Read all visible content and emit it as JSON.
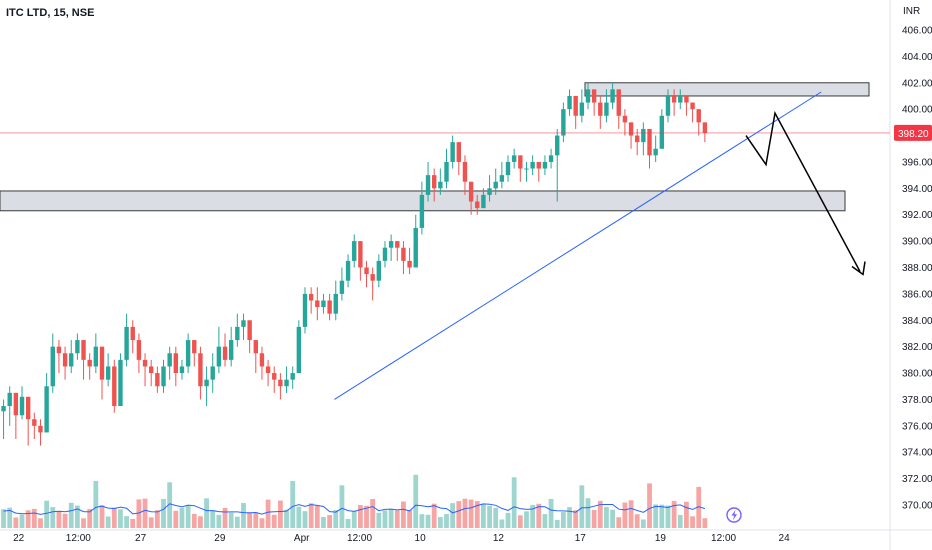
{
  "symbol": {
    "title": "ITC LTD, 15, NSE"
  },
  "chart_data": {
    "type": "candlestick",
    "currency": "INR",
    "last_price": "398.20",
    "y_ticks": [
      "406.00",
      "404.00",
      "402.00",
      "400.00",
      "398.00",
      "396.00",
      "394.00",
      "392.00",
      "390.00",
      "388.00",
      "386.00",
      "384.00",
      "382.00",
      "380.00",
      "378.00",
      "376.00",
      "374.00",
      "372.00",
      "370.00"
    ],
    "y_range": [
      369,
      407
    ],
    "x_ticks": [
      "22",
      "12:00",
      "27",
      "29",
      "Apr",
      "12:00",
      "10",
      "12",
      "17",
      "19",
      "12:00",
      "24"
    ],
    "price_path": [
      [
        377.5,
        375.0,
        378.0
      ],
      [
        378.5,
        376.0,
        379.0
      ],
      [
        376.8,
        375.0,
        378.5
      ],
      [
        378.2,
        376.5,
        379.0
      ],
      [
        376.5,
        374.5,
        378.0
      ],
      [
        376.0,
        375.0,
        377.0
      ],
      [
        375.5,
        374.5,
        376.5
      ],
      [
        379.0,
        375.5,
        380.0
      ],
      [
        382.0,
        378.5,
        383.0
      ],
      [
        381.5,
        380.0,
        382.5
      ],
      [
        380.5,
        379.5,
        382.0
      ],
      [
        381.5,
        380.0,
        382.5
      ],
      [
        382.5,
        381.0,
        383.0
      ],
      [
        381.0,
        379.5,
        382.0
      ],
      [
        380.5,
        379.5,
        381.5
      ],
      [
        382.0,
        380.0,
        383.0
      ],
      [
        379.5,
        378.0,
        381.0
      ],
      [
        380.5,
        379.0,
        381.5
      ],
      [
        377.5,
        377.0,
        381.0
      ],
      [
        381.0,
        378.0,
        381.5
      ],
      [
        383.5,
        380.5,
        384.5
      ],
      [
        382.5,
        381.5,
        384.0
      ],
      [
        381.0,
        380.0,
        383.0
      ],
      [
        380.5,
        379.0,
        381.5
      ],
      [
        380.0,
        379.0,
        381.0
      ],
      [
        379.0,
        378.5,
        380.5
      ],
      [
        380.5,
        378.5,
        381.0
      ],
      [
        381.5,
        379.5,
        382.0
      ],
      [
        380.0,
        379.0,
        382.0
      ],
      [
        380.5,
        379.5,
        381.0
      ],
      [
        382.5,
        380.0,
        383.0
      ],
      [
        381.5,
        380.5,
        382.5
      ],
      [
        379.0,
        378.0,
        382.0
      ],
      [
        379.5,
        377.5,
        380.5
      ],
      [
        380.5,
        378.5,
        381.5
      ],
      [
        382.0,
        380.0,
        383.5
      ],
      [
        381.0,
        380.5,
        383.0
      ],
      [
        382.5,
        380.5,
        383.5
      ],
      [
        383.5,
        382.0,
        384.5
      ],
      [
        384.0,
        382.5,
        384.5
      ],
      [
        382.5,
        381.5,
        384.0
      ],
      [
        381.5,
        380.0,
        382.5
      ],
      [
        380.5,
        379.5,
        382.0
      ],
      [
        380.0,
        379.0,
        381.0
      ],
      [
        379.5,
        378.5,
        380.5
      ],
      [
        379.0,
        378.0,
        380.0
      ],
      [
        379.5,
        378.5,
        380.5
      ],
      [
        380.0,
        378.8,
        380.5
      ],
      [
        383.5,
        380.0,
        384.0
      ],
      [
        386.0,
        383.0,
        386.5
      ],
      [
        385.5,
        384.5,
        386.5
      ],
      [
        385.0,
        384.0,
        386.5
      ],
      [
        385.5,
        384.5,
        386.0
      ],
      [
        384.5,
        384.0,
        386.0
      ],
      [
        386.0,
        384.0,
        387.0
      ],
      [
        387.0,
        385.5,
        388.0
      ],
      [
        388.5,
        386.5,
        389.0
      ],
      [
        390.0,
        388.0,
        390.5
      ],
      [
        388.0,
        387.0,
        390.0
      ],
      [
        387.5,
        386.5,
        388.5
      ],
      [
        387.0,
        385.5,
        388.0
      ],
      [
        388.5,
        386.5,
        389.0
      ],
      [
        389.5,
        388.0,
        390.0
      ],
      [
        390.0,
        388.5,
        390.5
      ],
      [
        389.5,
        388.5,
        390.0
      ],
      [
        388.5,
        387.5,
        390.0
      ],
      [
        388.0,
        387.5,
        389.5
      ],
      [
        391.0,
        388.0,
        392.0
      ],
      [
        393.5,
        390.5,
        394.5
      ],
      [
        395.0,
        393.0,
        396.0
      ],
      [
        394.0,
        393.0,
        395.5
      ],
      [
        394.5,
        393.5,
        395.5
      ],
      [
        396.0,
        394.0,
        397.0
      ],
      [
        397.5,
        395.5,
        398.0
      ],
      [
        396.0,
        395.0,
        397.5
      ],
      [
        394.5,
        393.5,
        396.5
      ],
      [
        393.0,
        392.0,
        394.5
      ],
      [
        392.5,
        392.0,
        393.5
      ],
      [
        393.5,
        392.5,
        394.0
      ],
      [
        394.0,
        393.0,
        395.0
      ],
      [
        394.5,
        393.5,
        395.5
      ],
      [
        395.0,
        394.0,
        396.0
      ],
      [
        396.0,
        394.5,
        396.5
      ],
      [
        396.5,
        395.5,
        397.0
      ],
      [
        395.5,
        394.5,
        396.5
      ],
      [
        395.5,
        394.5,
        396.0
      ],
      [
        396.0,
        395.0,
        396.5
      ],
      [
        395.5,
        394.5,
        396.0
      ],
      [
        396.0,
        395.0,
        396.5
      ],
      [
        396.5,
        395.5,
        397.0
      ],
      [
        398.0,
        393.0,
        398.5
      ],
      [
        400.0,
        397.5,
        400.5
      ],
      [
        401.0,
        399.5,
        401.5
      ],
      [
        399.5,
        398.5,
        401.0
      ],
      [
        400.5,
        399.0,
        401.5
      ],
      [
        401.5,
        400.0,
        402.0
      ],
      [
        400.5,
        399.5,
        401.5
      ],
      [
        399.5,
        398.5,
        401.0
      ],
      [
        400.5,
        399.0,
        401.5
      ],
      [
        401.5,
        400.0,
        402.0
      ],
      [
        399.5,
        398.5,
        401.0
      ],
      [
        399.0,
        398.0,
        400.0
      ],
      [
        398.0,
        397.0,
        399.0
      ],
      [
        397.5,
        396.5,
        398.5
      ],
      [
        398.5,
        396.5,
        399.0
      ],
      [
        396.5,
        395.5,
        397.5
      ],
      [
        397.0,
        396.0,
        398.0
      ],
      [
        399.5,
        397.0,
        400.0
      ],
      [
        401.0,
        399.0,
        401.5
      ],
      [
        400.5,
        399.5,
        401.5
      ],
      [
        401.0,
        400.0,
        401.5
      ],
      [
        400.5,
        399.5,
        401.0
      ],
      [
        400.0,
        399.0,
        400.5
      ],
      [
        399.0,
        398.0,
        400.0
      ],
      [
        398.2,
        397.5,
        399.0
      ]
    ],
    "resistance_box": {
      "price_top": 402.0,
      "price_bottom": 401.0
    },
    "support_box": {
      "price_top": 393.8,
      "price_bottom": 392.3
    },
    "trendline": {
      "start": [
        0.36,
        378.0
      ],
      "end": [
        0.88,
        401.3
      ]
    },
    "projection": [
      [
        0.804,
        398.0
      ],
      [
        0.823,
        395.8
      ],
      [
        0.834,
        399.7
      ],
      [
        0.925,
        387.7
      ]
    ],
    "colors": {
      "up": "#26a69a",
      "down": "#ef5350",
      "up_volume": "#9ed6cf",
      "down_volume": "#f5a6a4",
      "trendline": "#2962ff",
      "box_fill": "#d1d4dc",
      "box_stroke": "#3a3a3a",
      "price_badge": "#f23645",
      "volume_ma": "#2962ff",
      "price_line": "#f23645",
      "grid": "#f0f3fa",
      "projection": "#000000"
    }
  },
  "toolbar": {
    "bolt_icon": "lightning-bolt-icon"
  }
}
